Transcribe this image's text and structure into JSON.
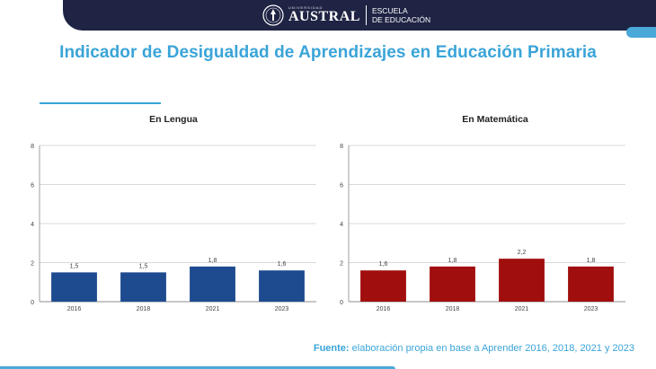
{
  "header": {
    "university_small": "UNIVERSIDAD",
    "university": "AUSTRAL",
    "school_line1": "ESCUELA",
    "school_line2": "DE EDUCACIÓN"
  },
  "title": "Indicador de Desigualdad de Aprendizajes en Educación Primaria",
  "charts": [
    {
      "title": "En Lengua"
    },
    {
      "title": "En Matemática"
    }
  ],
  "source": {
    "label": "Fuente:",
    "text": " elaboración propia en base a Aprender 2016, 2018, 2021 y 2023"
  },
  "colors": {
    "lengua_bar": "#1e4b8f",
    "matematica_bar": "#a10e0e",
    "accent": "#3aa4d8",
    "header_bg": "#1f2444"
  },
  "chart_data": [
    {
      "type": "bar",
      "title": "En Lengua",
      "categories": [
        "2016",
        "2018",
        "2021",
        "2023"
      ],
      "values": [
        1.5,
        1.5,
        1.8,
        1.6
      ],
      "labels": [
        "1,5",
        "1,5",
        "1,8",
        "1,6"
      ],
      "ylim": [
        0,
        8
      ],
      "yticks": [
        0,
        2,
        4,
        6,
        8
      ],
      "grid": true,
      "color": "#1e4b8f"
    },
    {
      "type": "bar",
      "title": "En Matemática",
      "categories": [
        "2016",
        "2018",
        "2021",
        "2023"
      ],
      "values": [
        1.6,
        1.8,
        2.2,
        1.8
      ],
      "labels": [
        "1,6",
        "1,8",
        "2,2",
        "1,8"
      ],
      "ylim": [
        0,
        8
      ],
      "yticks": [
        0,
        2,
        4,
        6,
        8
      ],
      "grid": true,
      "color": "#a10e0e"
    }
  ]
}
